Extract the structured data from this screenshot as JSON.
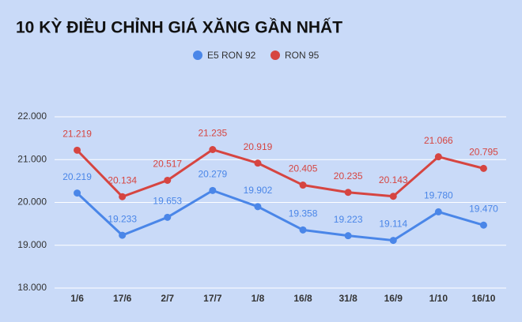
{
  "chart_data": {
    "type": "line",
    "title": "10 KỲ ĐIỀU CHỈNH GIÁ XĂNG GẦN NHẤT",
    "categories": [
      "1/6",
      "17/6",
      "2/7",
      "17/7",
      "1/8",
      "16/8",
      "31/8",
      "16/9",
      "1/10",
      "16/10"
    ],
    "series": [
      {
        "name": "E5 RON 92",
        "color": "#4a86e8",
        "values": [
          20219,
          19233,
          19653,
          20279,
          19902,
          19358,
          19223,
          19114,
          19780,
          19470
        ],
        "value_labels": [
          "20.219",
          "19.233",
          "19.653",
          "20.279",
          "19.902",
          "19.358",
          "19.223",
          "19.114",
          "19.780",
          "19.470"
        ]
      },
      {
        "name": "RON 95",
        "color": "#d64541",
        "values": [
          21219,
          20134,
          20517,
          21235,
          20919,
          20405,
          20235,
          20143,
          21066,
          20795
        ],
        "value_labels": [
          "21.219",
          "20.134",
          "20.517",
          "21.235",
          "20.919",
          "20.405",
          "20.235",
          "20.143",
          "21.066",
          "20.795"
        ]
      }
    ],
    "ylim": [
      18000,
      22000
    ],
    "yticks": [
      {
        "value": 18000,
        "label": "18.000"
      },
      {
        "value": 19000,
        "label": "19.000"
      },
      {
        "value": 20000,
        "label": "20.000"
      },
      {
        "value": 21000,
        "label": "21.000"
      },
      {
        "value": 22000,
        "label": "22.000"
      }
    ],
    "grid": true,
    "legend": "top"
  }
}
